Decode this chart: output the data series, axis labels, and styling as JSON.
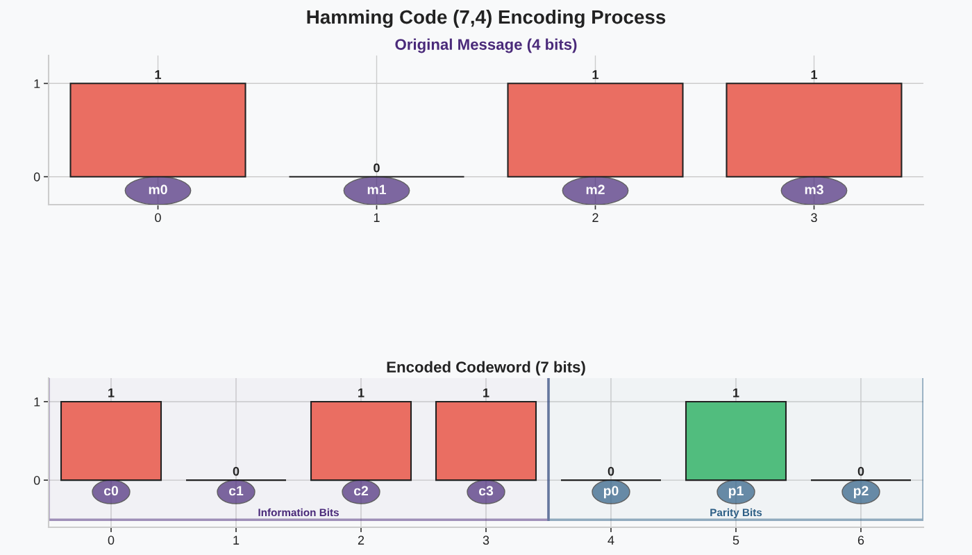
{
  "chart_data": [
    {
      "type": "bar",
      "title": "Hamming Code (7,4) Encoding Process",
      "subtitle": "Original Message (4 bits)",
      "x": [
        0,
        1,
        2,
        3
      ],
      "values": [
        1,
        0,
        1,
        1
      ],
      "colors": [
        "#ea6e62",
        "#222222",
        "#ea6e62",
        "#ea6e62"
      ],
      "xlim": [
        -0.5,
        3.5
      ],
      "xticks": [
        0,
        1,
        2,
        3
      ],
      "ylim": [
        -0.3,
        1.3
      ],
      "yticks": [
        0,
        1
      ],
      "grid": true,
      "data_labels": true,
      "annotations": [
        "m0",
        "m1",
        "m2",
        "m3"
      ]
    },
    {
      "type": "bar",
      "title": "Encoded Codeword (7 bits)",
      "x": [
        0,
        1,
        2,
        3,
        4,
        5,
        6
      ],
      "values": [
        1,
        0,
        1,
        1,
        0,
        1,
        0
      ],
      "colors": [
        "#ea6e62",
        "#222222",
        "#ea6e62",
        "#ea6e62",
        "#222222",
        "#51bd7e",
        "#222222"
      ],
      "xlim": [
        -0.5,
        6.5
      ],
      "xticks": [
        0,
        1,
        2,
        3,
        4,
        5,
        6
      ],
      "ylim": [
        -0.6,
        1.3
      ],
      "yticks": [
        0,
        1
      ],
      "grid": true,
      "data_labels": true,
      "bands": [
        {
          "axis": "x",
          "from": -0.5,
          "to": 3.5,
          "label": "Information Bits",
          "color": "#4a2a7a"
        },
        {
          "axis": "x",
          "from": 3.5,
          "to": 6.5,
          "label": "Parity Bits",
          "color": "#2e5f86"
        }
      ],
      "annotations": [
        "c0",
        "c1",
        "c2",
        "c3",
        "p0",
        "p1",
        "p2"
      ]
    }
  ]
}
